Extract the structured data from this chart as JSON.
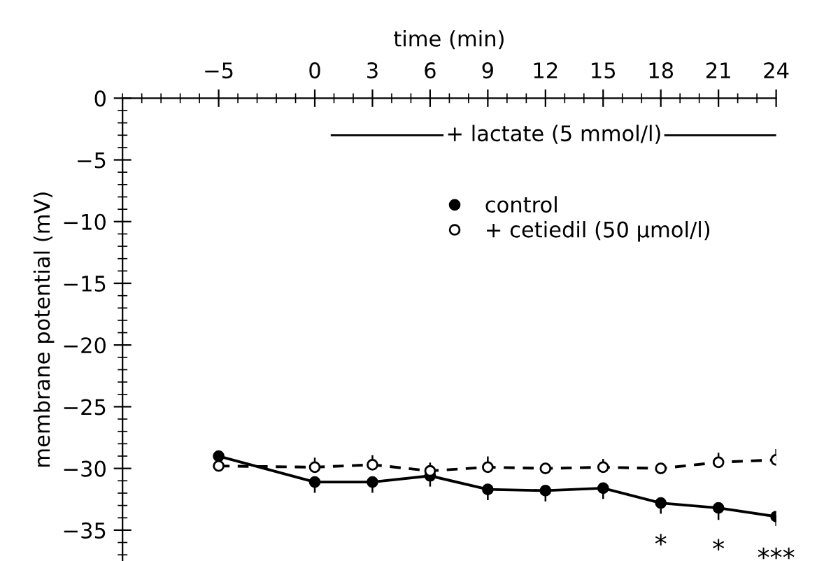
{
  "chart_data": {
    "type": "line",
    "xlabel": "time (min)",
    "ylabel": "membrane potential (mV)",
    "x": [
      -5,
      0,
      3,
      6,
      9,
      12,
      15,
      18,
      21,
      24
    ],
    "xlim": [
      -10,
      24
    ],
    "xticks": [
      -5,
      0,
      3,
      6,
      9,
      12,
      15,
      18,
      21,
      24
    ],
    "ylim": [
      -37.5,
      0
    ],
    "yticks": [
      -35,
      -30,
      -25,
      -20,
      -15,
      -10,
      -5,
      0
    ],
    "series": [
      {
        "name": "control",
        "color": "#000000",
        "marker": "circle",
        "line_style": "solid",
        "values": [
          -29.0,
          -31.1,
          -31.1,
          -30.6,
          -31.7,
          -31.8,
          -31.6,
          -32.8,
          -33.2,
          -33.9
        ],
        "errors": [
          [
            -29.0,
            -29.0
          ],
          [
            -31.9,
            -31.1
          ],
          [
            -31.9,
            -31.1
          ],
          [
            -31.4,
            -30.6
          ],
          [
            -32.5,
            -31.7
          ],
          [
            -32.6,
            -31.8
          ],
          [
            -32.4,
            -31.6
          ],
          [
            -33.6,
            -32.8
          ],
          [
            -34.1,
            -33.2
          ],
          [
            -34.6,
            -33.9
          ]
        ]
      },
      {
        "name": "+ cetiedil (50 µmol/l)",
        "color": "#000000",
        "marker": "circle",
        "line_style": "dashed",
        "values": [
          -29.8,
          -29.9,
          -29.7,
          -30.2,
          -29.9,
          -30.0,
          -29.9,
          -30.0,
          -29.5,
          -29.3
        ],
        "errors": [
          [
            -29.8,
            -29.8
          ],
          [
            -29.9,
            -29.2
          ],
          [
            -29.7,
            -29.0
          ],
          [
            -30.2,
            -29.6
          ],
          [
            -29.9,
            -29.1
          ],
          [
            -30.0,
            -30.0
          ],
          [
            -29.9,
            -29.3
          ],
          [
            -30.0,
            -30.0
          ],
          [
            -29.5,
            -28.8
          ],
          [
            -29.3,
            -28.5
          ]
        ]
      }
    ],
    "annotations": [
      "+ lactate (5 mmol/l)",
      {
        "text": "*",
        "x": 18,
        "y": -32.8
      },
      {
        "text": "*",
        "x": 21,
        "y": -33.2
      },
      {
        "text": "***",
        "x": 24,
        "y": -33.9
      }
    ],
    "legend": "top right",
    "grid": false
  }
}
